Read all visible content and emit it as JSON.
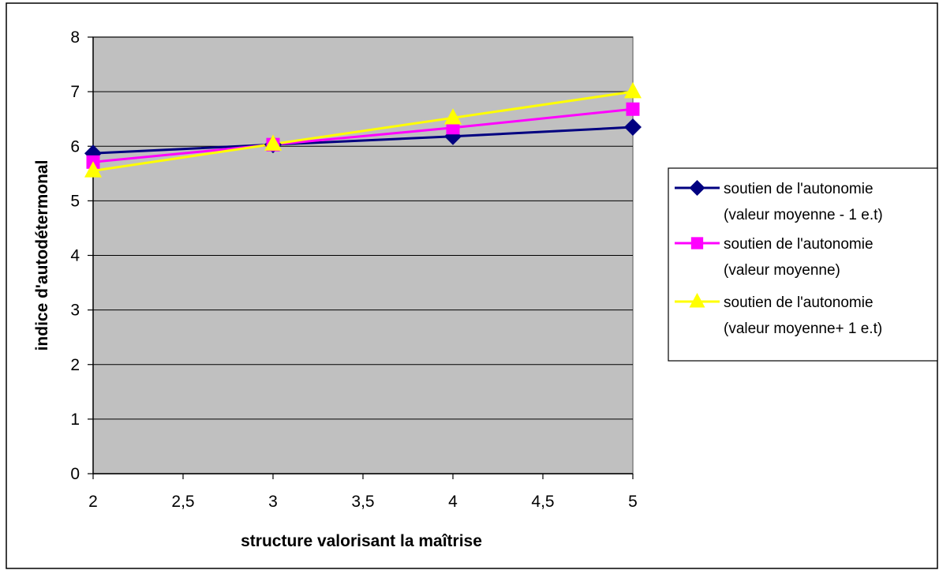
{
  "chart_data": {
    "type": "line",
    "title": "",
    "xlabel": "structure valorisant la maîtrise",
    "ylabel": "indice d'autodétermonal",
    "xlim": [
      2,
      5
    ],
    "ylim": [
      0,
      8
    ],
    "x_ticks": [
      2,
      2.5,
      3,
      3.5,
      4,
      4.5,
      5
    ],
    "x_tick_labels": [
      "2",
      "2,5",
      "3",
      "3,5",
      "4",
      "4,5",
      "5"
    ],
    "y_ticks": [
      0,
      1,
      2,
      3,
      4,
      5,
      6,
      7,
      8
    ],
    "y_tick_labels": [
      "0",
      "1",
      "2",
      "3",
      "4",
      "5",
      "6",
      "7",
      "8"
    ],
    "grid": "horizontal",
    "plot_background": "#c0c0c0",
    "legend_position": "right",
    "x": [
      2,
      3,
      4,
      5
    ],
    "series": [
      {
        "name_lines": [
          "soutien de l'autonomie",
          "(valeur moyenne - 1 e.t)"
        ],
        "color": "#000080",
        "marker": "diamond",
        "values": [
          5.87,
          6.03,
          6.18,
          6.35
        ]
      },
      {
        "name_lines": [
          "soutien de l'autonomie",
          "(valeur moyenne)"
        ],
        "color": "#ff00ff",
        "marker": "square",
        "values": [
          5.71,
          6.03,
          6.34,
          6.68
        ]
      },
      {
        "name_lines": [
          "soutien de l'autonomie",
          "(valeur moyenne+ 1 e.t)"
        ],
        "color": "#ffff00",
        "marker": "triangle",
        "values": [
          5.55,
          6.04,
          6.52,
          7.0
        ]
      }
    ]
  }
}
